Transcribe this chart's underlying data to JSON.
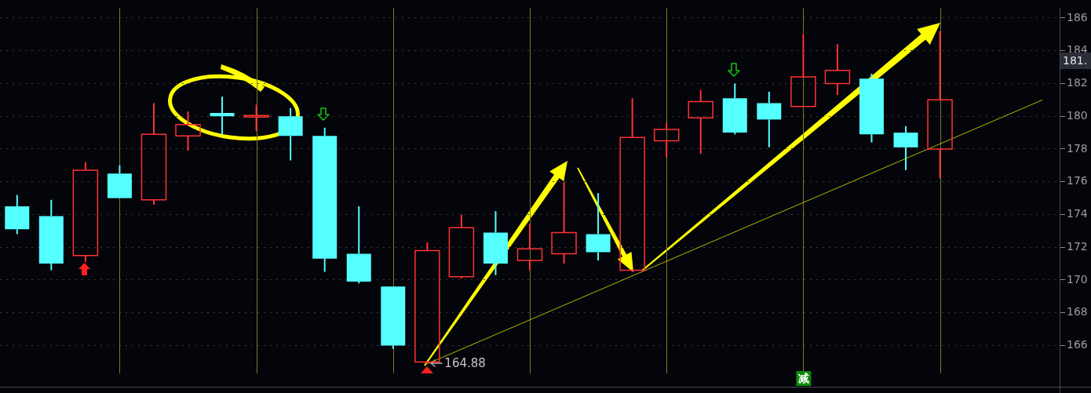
{
  "chart_data": {
    "type": "candlestick",
    "categories": [
      null,
      null,
      null,
      null,
      null,
      null,
      null,
      null,
      null,
      null,
      null,
      null,
      null,
      null,
      null,
      null,
      null,
      null,
      null,
      null,
      null,
      null,
      null,
      null,
      null,
      null,
      null,
      null,
      null,
      null,
      null
    ],
    "ohlc": [
      [
        174.5,
        175.2,
        172.8,
        173.1
      ],
      [
        173.9,
        174.9,
        170.6,
        171.0
      ],
      [
        171.5,
        177.2,
        171.1,
        176.7
      ],
      [
        176.5,
        177.0,
        175.0,
        175.0
      ],
      [
        174.9,
        180.8,
        174.6,
        178.9
      ],
      [
        178.8,
        180.3,
        177.9,
        179.5
      ],
      [
        180.2,
        181.2,
        178.9,
        180.0
      ],
      [
        180.0,
        180.7,
        179.1,
        180.0
      ],
      [
        180.0,
        180.5,
        177.3,
        178.8
      ],
      [
        178.8,
        179.3,
        170.5,
        171.3
      ],
      [
        171.6,
        174.5,
        169.8,
        169.9
      ],
      [
        169.6,
        169.6,
        165.8,
        166.0
      ],
      [
        165.0,
        172.3,
        164.88,
        171.8
      ],
      [
        170.2,
        174.0,
        170.1,
        173.2
      ],
      [
        172.9,
        174.2,
        170.3,
        171.0
      ],
      [
        171.2,
        173.4,
        170.6,
        171.9
      ],
      [
        171.6,
        176.0,
        171.0,
        172.9
      ],
      [
        172.8,
        175.3,
        171.2,
        171.7
      ],
      [
        170.6,
        181.1,
        170.5,
        178.7
      ],
      [
        178.5,
        179.6,
        177.5,
        179.2
      ],
      [
        179.9,
        181.6,
        177.7,
        180.9
      ],
      [
        181.1,
        182.0,
        178.9,
        179.0
      ],
      [
        180.8,
        181.5,
        178.1,
        179.8
      ],
      [
        180.6,
        185.0,
        180.6,
        182.4
      ],
      [
        182.0,
        184.4,
        181.3,
        182.8
      ],
      [
        182.3,
        182.6,
        178.4,
        178.9
      ],
      [
        179.0,
        179.4,
        176.7,
        178.1
      ],
      [
        178.0,
        185.2,
        176.2,
        181.0
      ],
      null,
      null,
      null
    ],
    "colors": [
      "#54ffff",
      "#54ffff",
      "#ff3232",
      "#54ffff",
      "#ff3232",
      "#ff3232",
      "#54ffff",
      "#ff3232",
      "#54ffff",
      "#54ffff",
      "#54ffff",
      "#54ffff",
      "#ff3232",
      "#ff3232",
      "#54ffff",
      "#ff3232",
      "#ff3232",
      "#54ffff",
      "#ff3232",
      "#ff3232",
      "#ff3232",
      "#54ffff",
      "#54ffff",
      "#ff3232",
      "#ff3232",
      "#54ffff",
      "#54ffff",
      "#ff3232",
      null,
      null,
      null
    ],
    "series": [
      {
        "type": "line",
        "color": "#b8b800",
        "values": [
          null,
          null,
          null,
          null,
          null,
          null,
          null,
          null,
          null,
          null,
          null,
          null,
          164.88,
          null,
          null,
          null,
          null,
          null,
          null,
          null,
          null,
          null,
          null,
          null,
          null,
          null,
          null,
          null,
          null,
          null,
          181.0
        ]
      }
    ],
    "ylim": [
      164.3,
      186.6
    ],
    "yticks": [
      166,
      168,
      170,
      172,
      174,
      176,
      178,
      180,
      182,
      184,
      186
    ],
    "grid": true,
    "tick_labels": "y",
    "annotations": [
      "181.",
      "164.88",
      "减"
    ]
  }
}
